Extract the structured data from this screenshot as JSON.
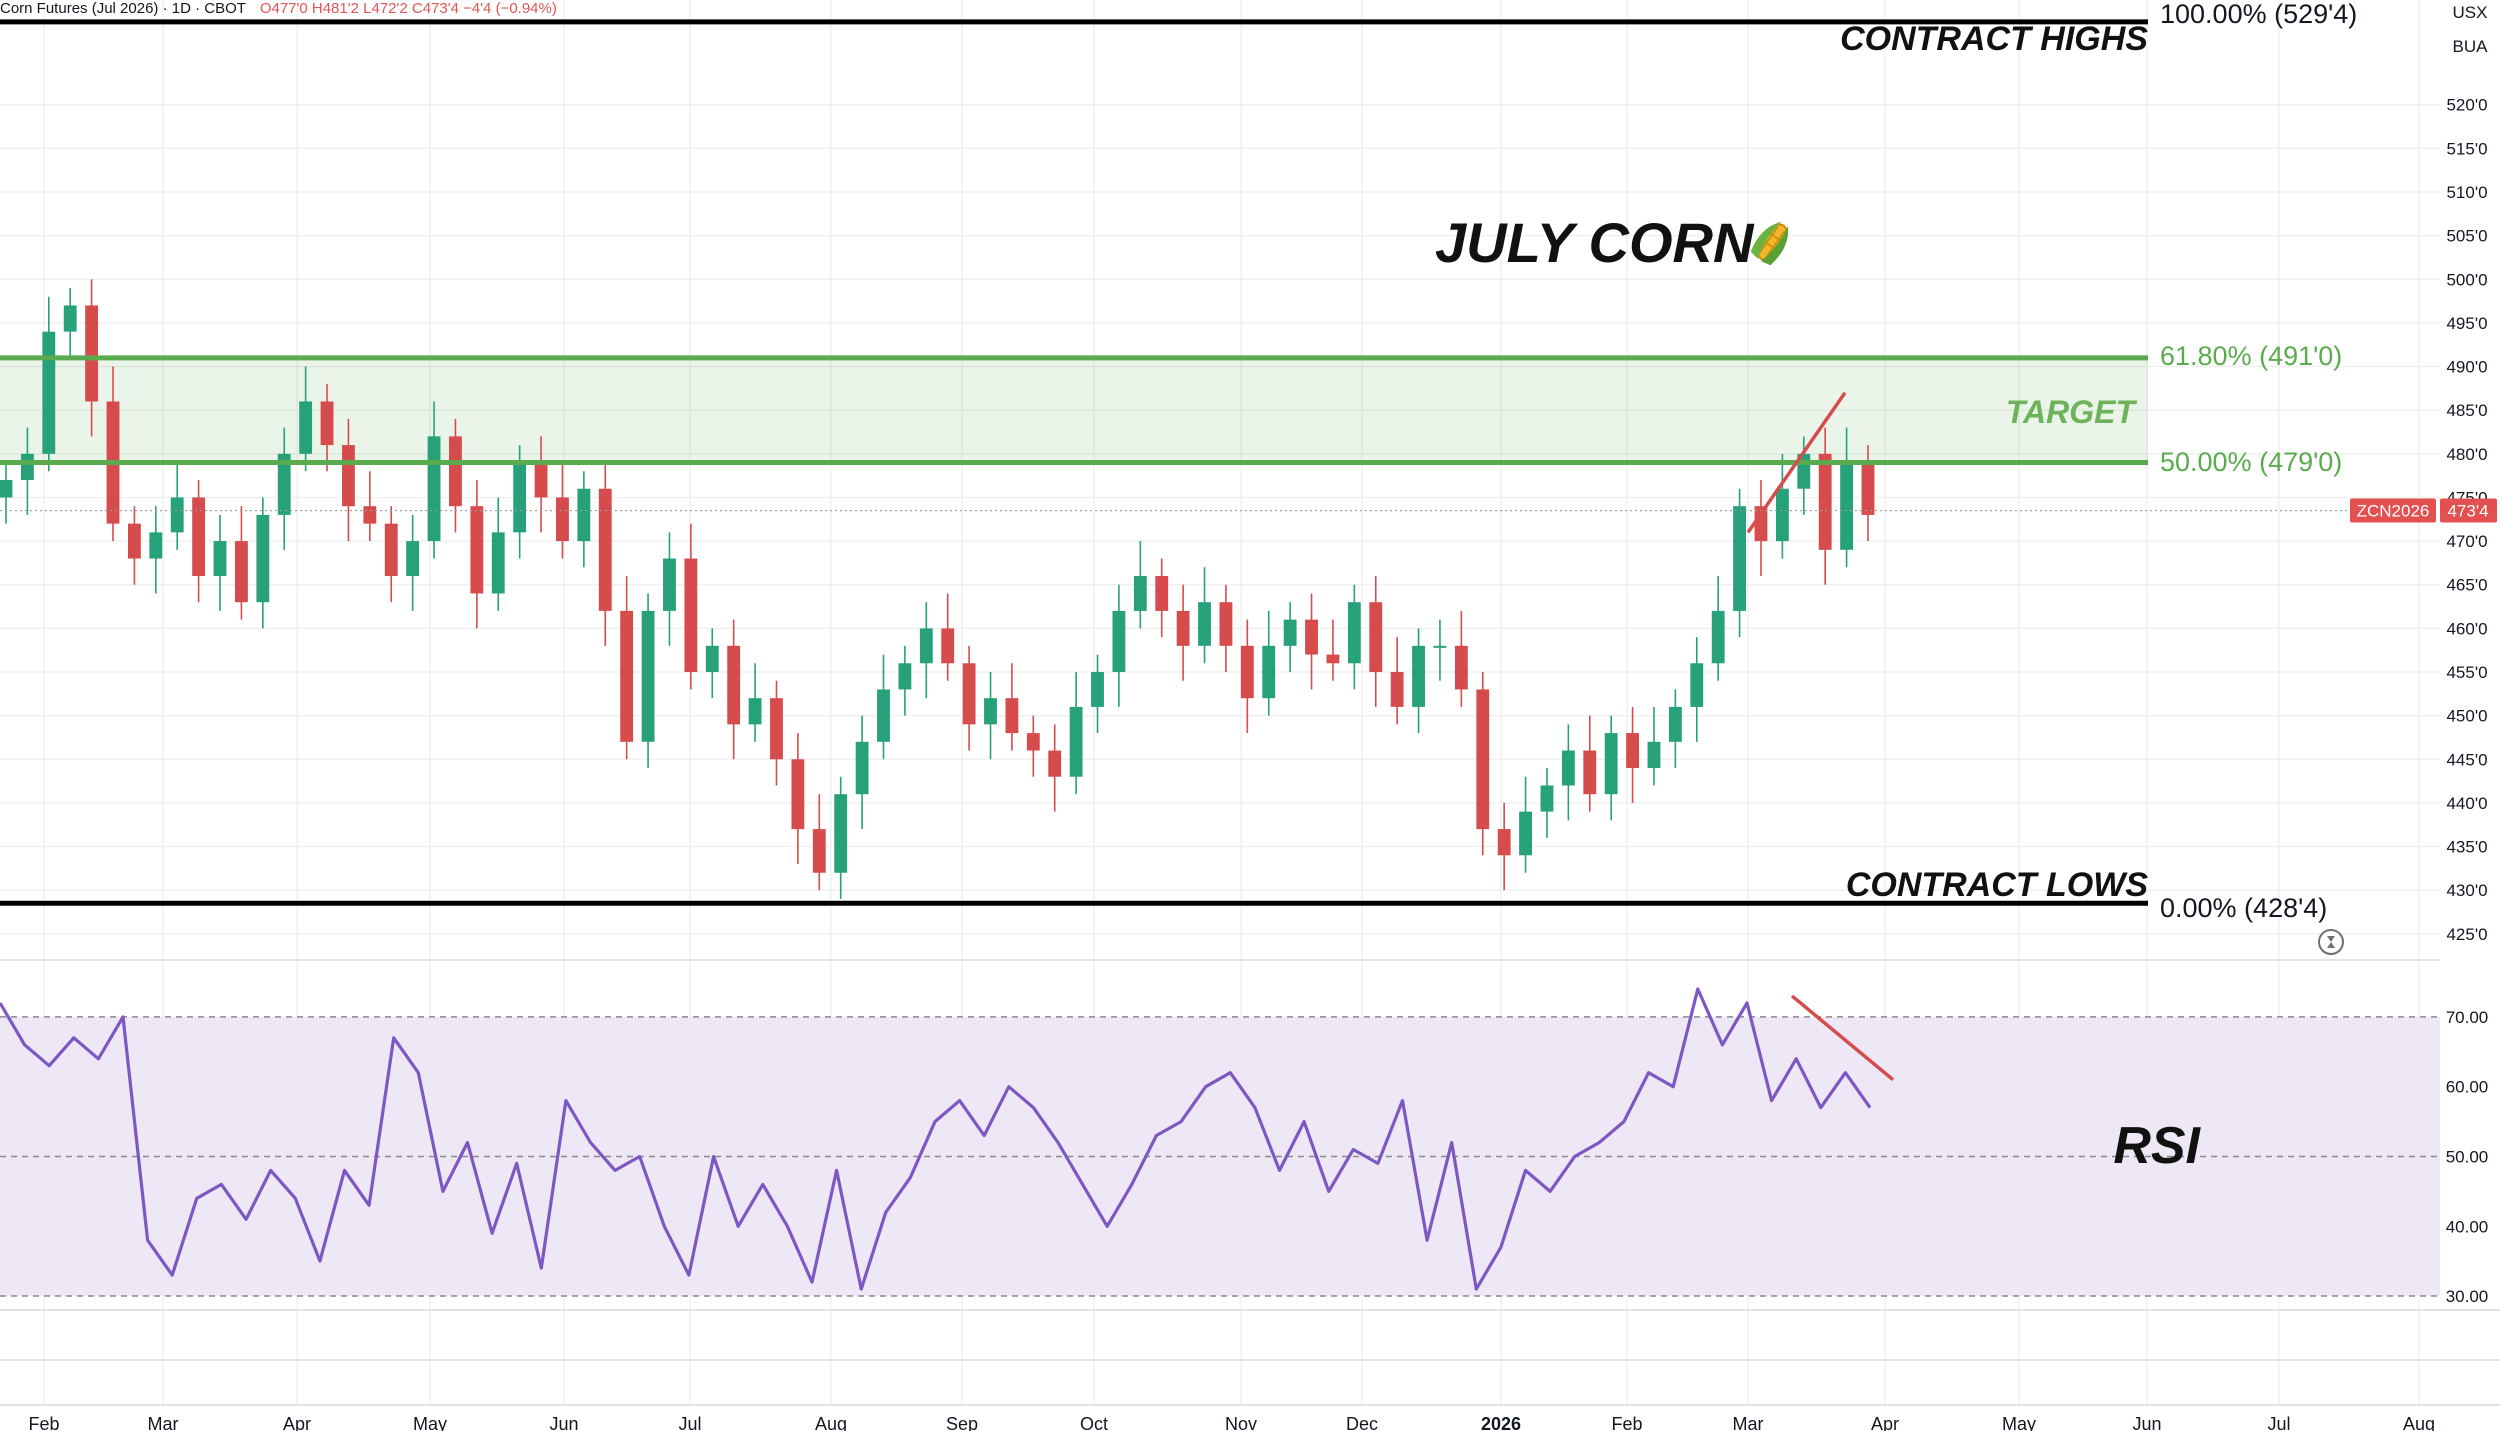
{
  "header": {
    "symbol": "Corn Futures (Jul 2026) · 1D · CBOT",
    "ohlc": "O477'0 H481'2 L472'2 C473'4 −4'4 (−0.94%)"
  },
  "annotations": {
    "title": "JULY CORN",
    "title_icon": "corn-icon",
    "contract_highs": "CONTRACT HIGHS",
    "contract_lows": "CONTRACT LOWS",
    "target": "TARGET",
    "rsi_label": "RSI"
  },
  "fib_levels": {
    "high": "100.00% (529'4)",
    "fib618": "61.80% (491'0)",
    "fib50": "50.00% (479'0)",
    "low": "0.00% (428'4)"
  },
  "price_axis": {
    "currency": "USX",
    "unit": "BUA",
    "last_symbol": "ZCN2026",
    "last_price": "473'4"
  },
  "colors": {
    "up": "#26a17a",
    "down": "#d64c4c",
    "target_zone": "#5aab4e",
    "rsi_line": "#7e57c2",
    "rsi_band": "#ede7f6",
    "trend_line": "#d64c4c"
  },
  "chart_data": {
    "type": "line",
    "series": [
      {
        "type": "candlestick",
        "approx_closes": [
          477,
          480,
          494,
          497,
          486,
          472,
          468,
          471,
          475,
          466,
          470,
          463,
          473,
          480,
          486,
          481,
          474,
          472,
          466,
          470,
          482,
          474,
          464,
          471,
          479,
          475,
          470,
          476,
          462,
          447,
          462,
          468,
          455,
          458,
          449,
          452,
          445,
          437,
          432,
          441,
          447,
          453,
          456,
          460,
          456,
          449,
          452,
          448,
          446,
          443,
          451,
          455,
          462,
          466,
          462,
          458,
          463,
          458,
          452,
          458,
          461,
          457,
          456,
          463,
          455,
          451,
          458,
          458,
          453,
          437,
          434,
          439,
          442,
          446,
          441,
          448,
          444,
          447,
          451,
          456,
          462,
          474,
          470,
          476,
          480,
          469,
          479,
          473
        ],
        "approx_time_range": [
          "Jan 2025",
          "Mar 2026"
        ]
      },
      {
        "name": "RSI",
        "approx_values": [
          72,
          66,
          63,
          67,
          64,
          70,
          38,
          33,
          44,
          46,
          41,
          48,
          44,
          35,
          48,
          43,
          67,
          62,
          45,
          52,
          39,
          49,
          34,
          58,
          52,
          48,
          50,
          40,
          33,
          50,
          40,
          46,
          40,
          32,
          48,
          31,
          42,
          47,
          55,
          58,
          53,
          60,
          57,
          52,
          46,
          40,
          46,
          53,
          55,
          60,
          62,
          57,
          48,
          55,
          45,
          51,
          49,
          58,
          38,
          52,
          31,
          37,
          48,
          45,
          50,
          52,
          55,
          62,
          60,
          74,
          66,
          72,
          58,
          64,
          57,
          62,
          57
        ]
      }
    ],
    "price_ticks": [
      "520'0",
      "515'0",
      "510'0",
      "505'0",
      "500'0",
      "495'0",
      "490'0",
      "485'0",
      "480'0",
      "475'0",
      "470'0",
      "465'0",
      "460'0",
      "455'0",
      "450'0",
      "445'0",
      "440'0",
      "435'0",
      "430'0",
      "425'0"
    ],
    "price_tick_values": [
      520,
      515,
      510,
      505,
      500,
      495,
      490,
      485,
      480,
      475,
      470,
      465,
      460,
      455,
      450,
      445,
      440,
      435,
      430,
      425
    ],
    "rsi_ticks": [
      "70.00",
      "60.00",
      "50.00",
      "40.00",
      "30.00"
    ],
    "rsi_tick_values": [
      70,
      60,
      50,
      40,
      30
    ],
    "x_tick_labels": [
      "Feb",
      "Mar",
      "Apr",
      "May",
      "Jun",
      "Jul",
      "Aug",
      "Sep",
      "Oct",
      "Nov",
      "Dec",
      "2026",
      "Feb",
      "Mar",
      "Apr",
      "May",
      "Jun",
      "Jul",
      "Aug"
    ],
    "price_range": [
      422,
      532
    ],
    "rsi_range": [
      28,
      76
    ],
    "reference_levels": [
      529.5,
      491,
      479,
      428.5
    ],
    "target_zone": [
      479,
      491
    ],
    "last_price_value": 473.5,
    "rsi_bands": [
      30,
      50,
      70
    ],
    "grid": true
  }
}
